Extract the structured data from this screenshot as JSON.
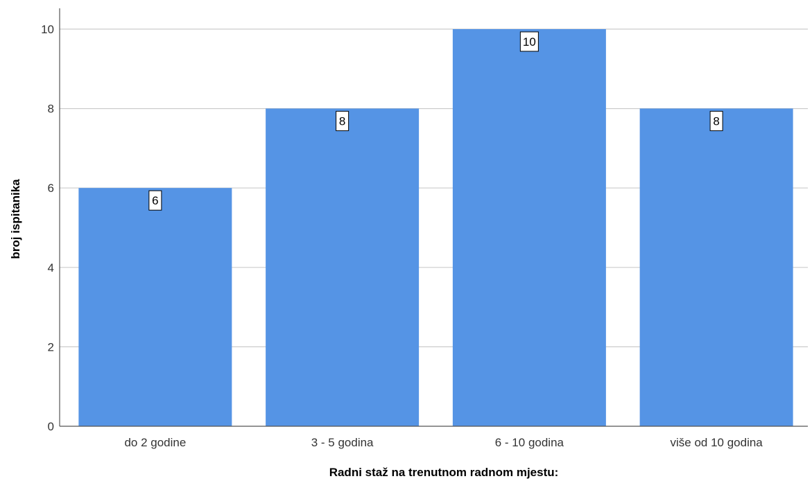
{
  "chart_data": {
    "type": "bar",
    "categories": [
      "do 2 godine",
      "3 - 5 godina",
      "6 - 10 godina",
      "više od 10 godina"
    ],
    "values": [
      6,
      8,
      10,
      8
    ],
    "data_labels": [
      "6",
      "8",
      "10",
      "8"
    ],
    "xlabel": "Radni staž na trenutnom radnom mjestu:",
    "ylabel": "broj ispitanika",
    "ylim": [
      0,
      10.5
    ],
    "yticks": [
      0,
      2,
      4,
      6,
      8,
      10
    ],
    "ytick_labels": [
      "0",
      "2",
      "4",
      "6",
      "8",
      "10"
    ],
    "grid": true,
    "legend": "none",
    "colors": {
      "bar": "#5594e5",
      "grid": "#cccccc",
      "axis": "#555555",
      "label_box_border": "#000000",
      "label_box_fill": "#ffffff"
    }
  }
}
